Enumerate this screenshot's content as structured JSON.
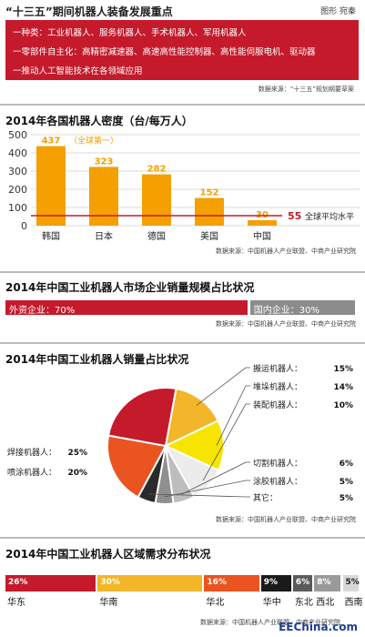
{
  "header": {
    "title": "“十三五”期间机器人装备发展重点",
    "credit": "图形 宛秦",
    "lines": [
      "一种类：工业机器人、服务机器人、手术机器人、军用机器人",
      "一零部件自主化：高精密减速器、高速高性能控制器、高性能伺服电机、驱动器",
      "一推动人工智能技术在各领域应用"
    ],
    "source": "数据来源：“十三五”规划纲要草案"
  },
  "colors": {
    "red": "#c41a2b",
    "orange": "#f3a000",
    "gray": "#8c8c8c",
    "text_dark": "#111111"
  },
  "chart_data": [
    {
      "type": "bar",
      "title": "2014年各国机器人密度（台/每万人）",
      "categories": [
        "韩国",
        "日本",
        "德国",
        "美国",
        "中国"
      ],
      "values": [
        437,
        323,
        282,
        152,
        30
      ],
      "data_labels": [
        "437",
        "323",
        "282",
        "152",
        "30"
      ],
      "ylim": [
        0,
        500
      ],
      "yticks": [
        0,
        100,
        200,
        300,
        400,
        500
      ],
      "grid": true,
      "annotations": [
        {
          "text": "（全球第一）",
          "target": "韩国"
        },
        {
          "text": "55",
          "kind": "reference_value"
        },
        {
          "text": "全球平均水平",
          "kind": "reference_label"
        }
      ],
      "reference_line": {
        "value": 55,
        "color": "#c41a2b"
      },
      "source": "数据来源：中国机器人产业联盟、中商产业研究院"
    },
    {
      "type": "bar",
      "title": "2014年中国工业机器人市场企业销量规模占比状况",
      "categories": [
        "外资企业",
        "国内企业"
      ],
      "values": [
        70,
        30
      ],
      "labels": [
        "外资企业：70%",
        "国内企业：30%"
      ],
      "unit": "%",
      "source": "数据来源：中国机器人产业联盟、中商产业研究院"
    },
    {
      "type": "pie",
      "title": "2014年中国工业机器人销量占比状况",
      "categories": [
        "搬运机器人",
        "堆垛机器人",
        "装配机器人",
        "切割机器人",
        "涂胶机器人",
        "其它",
        "喷涂机器人",
        "焊接机器人"
      ],
      "values": [
        15,
        14,
        10,
        6,
        5,
        5,
        20,
        25
      ],
      "labels": [
        "搬运机器人：15%",
        "堆垛机器人：14%",
        "装配机器人：10%",
        "切割机器人：6%",
        "涂胶机器人：5%",
        "其它：5%",
        "喷涂机器人：20%",
        "焊接机器人：25%"
      ],
      "colors": [
        "#f3b62a",
        "#f7e500",
        "#ececec",
        "#bdbdbd",
        "#8f8f8f",
        "#2a2a2a",
        "#ea5420",
        "#c41a2b"
      ],
      "source": "数据来源：中国机器人产业联盟、中商产业研究院"
    },
    {
      "type": "bar",
      "title": "2014年中国工业机器人区域需求分布状况",
      "categories": [
        "华东",
        "华南",
        "华北",
        "华中",
        "东北",
        "西北",
        "西南"
      ],
      "values": [
        26,
        30,
        16,
        9,
        6,
        8,
        5
      ],
      "data_labels": [
        "26%",
        "30%",
        "16%",
        "9%",
        "6%",
        "8%",
        "5%"
      ],
      "unit": "%",
      "colors": [
        "#c41a2b",
        "#f3b62a",
        "#ea5420",
        "#1a1a1a",
        "#5a5a5a",
        "#9a9a9a",
        "#d8d8d8"
      ],
      "source": "数据来源：中国机器人产业联盟、中商产业研究院"
    }
  ],
  "watermark": "EEChina.com"
}
